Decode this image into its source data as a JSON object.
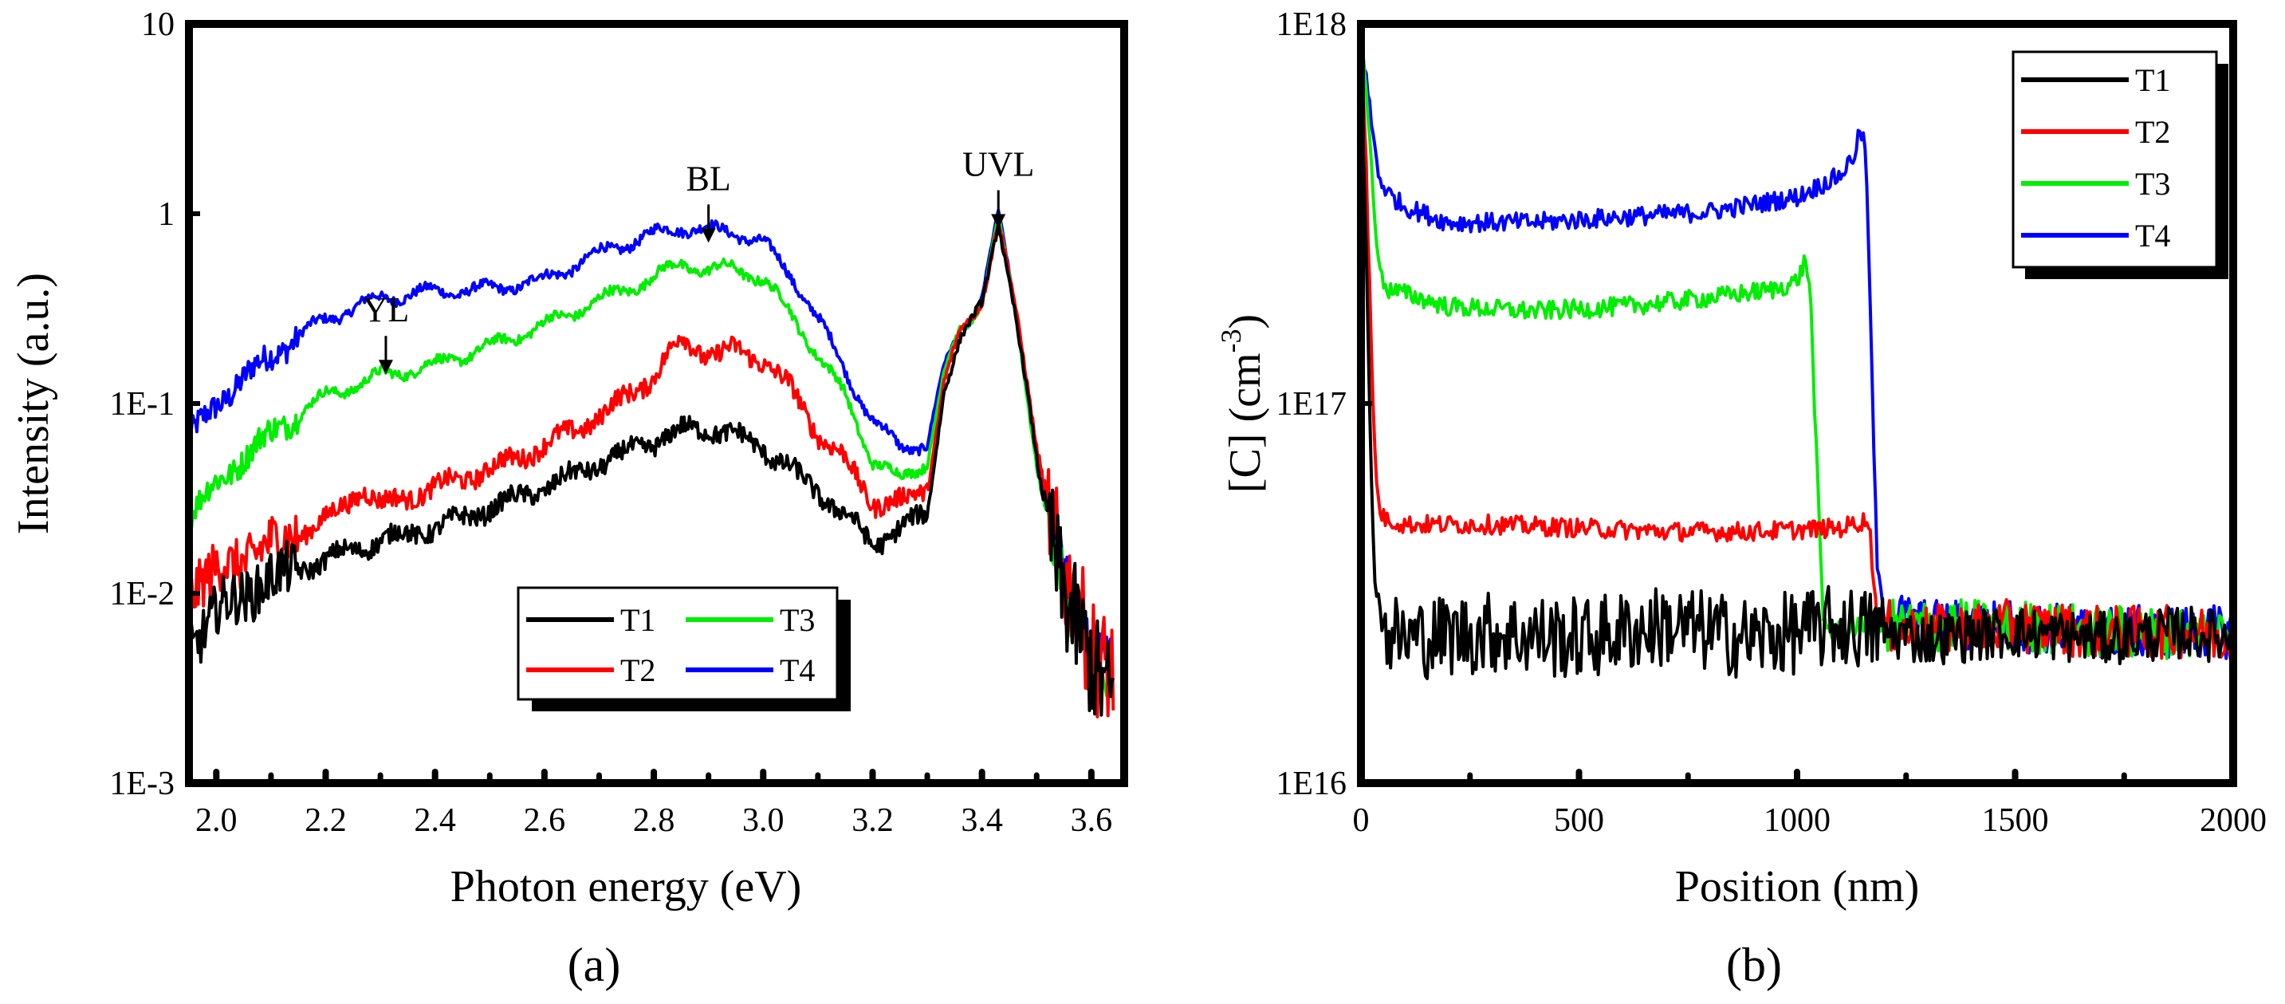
{
  "chart_data": [
    {
      "panel": "(a)",
      "type": "line",
      "title": "",
      "xlabel": "Photon energy (eV)",
      "ylabel": "Intensity (a.u.)",
      "yscale": "log",
      "xlim": [
        1.95,
        3.66
      ],
      "ylim": [
        0.001,
        10
      ],
      "xticks": [
        2.0,
        2.2,
        2.4,
        2.6,
        2.8,
        3.0,
        3.2,
        3.4,
        3.6
      ],
      "xtick_labels": [
        "2.0",
        "2.2",
        "2.4",
        "2.6",
        "2.8",
        "3.0",
        "3.2",
        "3.4",
        "3.6"
      ],
      "yticks": [
        0.001,
        0.01,
        0.1,
        1,
        10
      ],
      "ytick_labels": [
        "1E-3",
        "1E-2",
        "1E-1",
        "1",
        "10"
      ],
      "legend": {
        "placement": "lower-center",
        "columns": 2,
        "entries": [
          "T1",
          "T3",
          "T2",
          "T4"
        ]
      },
      "annotations": [
        {
          "text": "YL",
          "x": 2.31,
          "y": 0.14,
          "arrow": true
        },
        {
          "text": "BL",
          "x": 2.9,
          "y": 0.69,
          "arrow": true
        },
        {
          "text": "UVL",
          "x": 3.43,
          "y": 0.82,
          "arrow": true
        }
      ],
      "series": [
        {
          "name": "T1",
          "color": "#000000",
          "x": [
            1.95,
            2.0,
            2.1,
            2.2,
            2.3,
            2.4,
            2.5,
            2.6,
            2.7,
            2.8,
            2.85,
            2.9,
            2.95,
            3.0,
            3.05,
            3.1,
            3.15,
            3.2,
            3.25,
            3.3,
            3.33,
            3.36,
            3.38,
            3.4,
            3.43,
            3.46,
            3.5,
            3.55,
            3.6,
            3.64
          ],
          "values": [
            0.005,
            0.008,
            0.012,
            0.015,
            0.019,
            0.022,
            0.028,
            0.036,
            0.048,
            0.063,
            0.072,
            0.074,
            0.068,
            0.058,
            0.045,
            0.034,
            0.026,
            0.018,
            0.022,
            0.026,
            0.12,
            0.21,
            0.26,
            0.34,
            0.95,
            0.3,
            0.05,
            0.01,
            0.004,
            0.003
          ]
        },
        {
          "name": "T2",
          "color": "#ff0000",
          "x": [
            1.95,
            2.0,
            2.1,
            2.2,
            2.27,
            2.3,
            2.4,
            2.5,
            2.6,
            2.7,
            2.8,
            2.85,
            2.9,
            2.95,
            3.0,
            3.05,
            3.1,
            3.15,
            3.2,
            3.25,
            3.3,
            3.33,
            3.36,
            3.38,
            3.4,
            3.43,
            3.46,
            3.5,
            3.55,
            3.6,
            3.64
          ],
          "values": [
            0.01,
            0.013,
            0.018,
            0.024,
            0.036,
            0.029,
            0.036,
            0.045,
            0.06,
            0.085,
            0.14,
            0.22,
            0.18,
            0.19,
            0.17,
            0.12,
            0.07,
            0.05,
            0.03,
            0.03,
            0.036,
            0.13,
            0.23,
            0.27,
            0.35,
            0.97,
            0.32,
            0.06,
            0.012,
            0.005,
            0.004
          ]
        },
        {
          "name": "T3",
          "color": "#00ee00",
          "x": [
            1.95,
            2.0,
            2.1,
            2.2,
            2.3,
            2.4,
            2.5,
            2.6,
            2.7,
            2.8,
            2.85,
            2.9,
            2.95,
            3.0,
            3.05,
            3.1,
            3.15,
            3.2,
            3.25,
            3.3,
            3.33,
            3.36,
            3.38,
            3.4,
            3.43,
            3.46,
            3.5,
            3.55,
            3.6,
            3.64
          ],
          "values": [
            0.025,
            0.038,
            0.07,
            0.11,
            0.14,
            0.16,
            0.2,
            0.26,
            0.35,
            0.46,
            0.55,
            0.5,
            0.52,
            0.45,
            0.3,
            0.18,
            0.11,
            0.05,
            0.04,
            0.05,
            0.14,
            0.24,
            0.27,
            0.36,
            0.96,
            0.31,
            0.05,
            0.01,
            0.004,
            0.003
          ]
        },
        {
          "name": "T4",
          "color": "#0000ff",
          "x": [
            1.95,
            2.0,
            2.1,
            2.2,
            2.3,
            2.4,
            2.5,
            2.6,
            2.7,
            2.8,
            2.85,
            2.9,
            2.95,
            3.0,
            3.05,
            3.1,
            3.15,
            3.2,
            3.25,
            3.3,
            3.33,
            3.36,
            3.38,
            3.4,
            3.43,
            3.46,
            3.5,
            3.55,
            3.6,
            3.64
          ],
          "values": [
            0.065,
            0.1,
            0.18,
            0.28,
            0.36,
            0.39,
            0.4,
            0.45,
            0.62,
            0.78,
            0.85,
            0.82,
            0.8,
            0.7,
            0.48,
            0.28,
            0.15,
            0.08,
            0.06,
            0.06,
            0.15,
            0.25,
            0.28,
            0.37,
            0.98,
            0.33,
            0.055,
            0.012,
            0.005,
            0.004
          ]
        }
      ]
    },
    {
      "panel": "(b)",
      "type": "line",
      "title": "",
      "xlabel": "Position (nm)",
      "ylabel": "[C] (cm-3)",
      "ylabel_base": "[C] (cm",
      "ylabel_exponent": "-3",
      "ylabel_close": ")",
      "yscale": "log",
      "xlim": [
        0,
        2000
      ],
      "ylim": [
        1e+16,
        1e+18
      ],
      "xticks": [
        0,
        500,
        1000,
        1500,
        2000
      ],
      "xtick_labels": [
        "0",
        "500",
        "1000",
        "1500",
        "2000"
      ],
      "yticks": [
        1e+16,
        1e+17,
        1e+18
      ],
      "ytick_labels": [
        "1E16",
        "1E17",
        "1E18"
      ],
      "legend": {
        "placement": "top-right",
        "columns": 1,
        "entries": [
          "T1",
          "T2",
          "T3",
          "T4"
        ]
      },
      "series": [
        {
          "name": "T1",
          "color": "#000000",
          "x": [
            0,
            10,
            20,
            30,
            40,
            60,
            100,
            300,
            500,
            700,
            900,
            1100,
            1300,
            1500,
            1700,
            1900,
            2000
          ],
          "values": [
            9e+17,
            3e+17,
            9e+16,
            4e+16,
            3e+16,
            2.5e+16,
            2.4e+16,
            2.5e+16,
            2.4e+16,
            2.6e+16,
            2.4e+16,
            2.6e+16,
            2.4e+16,
            2.5e+16,
            2.4e+16,
            2.5e+16,
            2.4e+16
          ]
        },
        {
          "name": "T2",
          "color": "#ff0000",
          "x": [
            0,
            10,
            20,
            30,
            40,
            50,
            100,
            300,
            500,
            700,
            900,
            1100,
            1150,
            1165,
            1175,
            1185,
            1300,
            1500,
            1700,
            1900,
            2000
          ],
          "values": [
            9e+17,
            5e+17,
            2e+17,
            8e+16,
            5.5e+16,
            5e+16,
            4.8e+16,
            4.8e+16,
            4.7e+16,
            4.6e+16,
            4.6e+16,
            4.7e+16,
            4.9e+16,
            4.9e+16,
            3.5e+16,
            2.6e+16,
            2.5e+16,
            2.6e+16,
            2.5e+16,
            2.5e+16,
            2.4e+16
          ]
        },
        {
          "name": "T3",
          "color": "#00ee00",
          "x": [
            0,
            20,
            40,
            60,
            100,
            200,
            400,
            600,
            800,
            950,
            1000,
            1020,
            1030,
            1040,
            1050,
            1060,
            1080,
            1150,
            1300,
            1500,
            1700,
            1900,
            2000
          ],
          "values": [
            9.5e+17,
            5e+17,
            2.3e+17,
            2e+17,
            1.95e+17,
            1.8e+17,
            1.75e+17,
            1.8e+17,
            1.9e+17,
            2e+17,
            2.1e+17,
            2.4e+17,
            2e+17,
            1e+17,
            5e+16,
            2.7e+16,
            2.5e+16,
            2.6e+16,
            2.6e+16,
            2.6e+16,
            2.5e+16,
            2.5e+16,
            2.5e+16
          ]
        },
        {
          "name": "T4",
          "color": "#0000ff",
          "x": [
            0,
            20,
            40,
            60,
            100,
            200,
            400,
            600,
            800,
            1000,
            1100,
            1130,
            1145,
            1155,
            1165,
            1175,
            1185,
            1200,
            1300,
            1500,
            1700,
            1900,
            2000
          ],
          "values": [
            9.5e+17,
            6e+17,
            4e+17,
            3.6e+17,
            3.3e+17,
            3e+17,
            3e+17,
            3.1e+17,
            3.2e+17,
            3.5e+17,
            4e+17,
            4.5e+17,
            5.2e+17,
            5e+17,
            2.5e+17,
            8e+16,
            3.5e+16,
            2.8e+16,
            2.6e+16,
            2.6e+16,
            2.5e+16,
            2.5e+16,
            2.5e+16
          ]
        }
      ]
    }
  ],
  "panel_labels": {
    "a": "(a)",
    "b": "(b)"
  }
}
